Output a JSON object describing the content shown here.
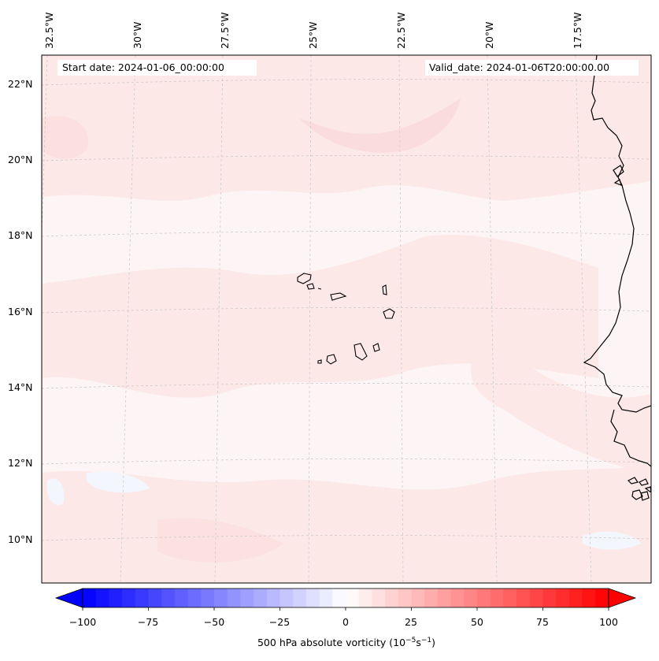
{
  "map": {
    "title_start": "Start date: 2024-01-06_00:00:00",
    "title_valid": "Valid_date: 2024-01-06T20:00:00.00",
    "lon_labels": [
      "32.5°W",
      "30°W",
      "27.5°W",
      "25°W",
      "22.5°W",
      "20°W",
      "17.5°W"
    ],
    "lat_labels": [
      "22°N",
      "20°N",
      "18°N",
      "16°N",
      "14°N",
      "12°N",
      "10°N"
    ],
    "variable": "500 hPa absolute vorticity",
    "units_prefix": "(10",
    "units_exp1": "−5",
    "units_mid": "s",
    "units_exp2": "−1",
    "units_suffix": ")"
  },
  "colorbar": {
    "min": -100,
    "max": 100,
    "step": 5,
    "ticks": [
      "−100",
      "−75",
      "−50",
      "−25",
      "0",
      "25",
      "50",
      "75",
      "100"
    ],
    "tick_values": [
      -100,
      -75,
      -50,
      -25,
      0,
      25,
      50,
      75,
      100
    ],
    "extend": "both",
    "cmap": "bwr",
    "color_neg": "#0000ff",
    "color_pos": "#ff0000",
    "color_mid": "#ffffff"
  },
  "colors": {
    "field_background": "#fdf5f5",
    "field_light": "#fde8e8",
    "field_medium": "#fbdcdc",
    "field_blue": "#f4f6fd",
    "coastline": "#000000",
    "gridline": "#cccccc"
  }
}
